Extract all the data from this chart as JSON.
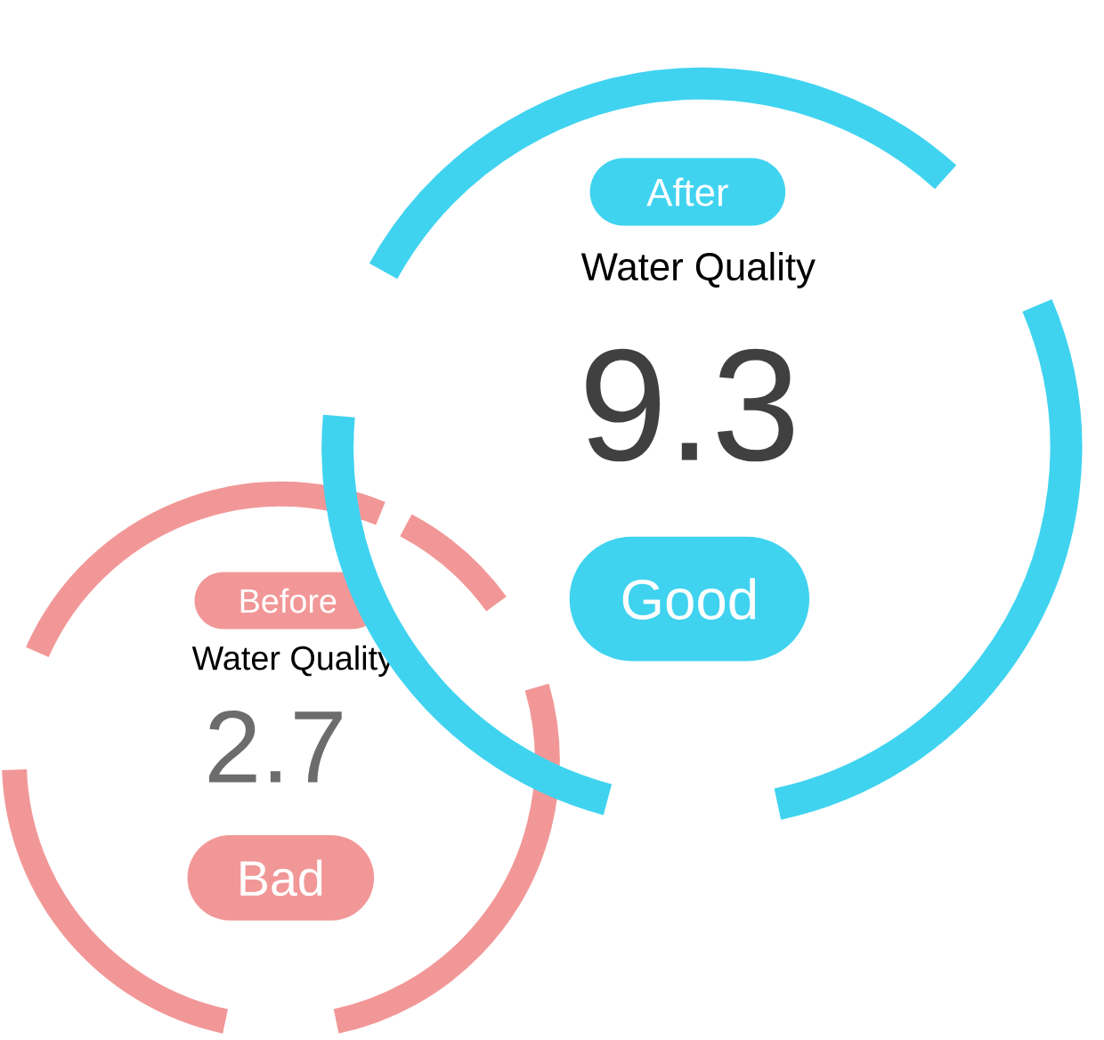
{
  "chart_data": [
    {
      "type": "other",
      "title": "Before",
      "subtitle": "Water Quality",
      "values": [
        2.7
      ],
      "data_labels": true,
      "annotations": [
        "Bad"
      ],
      "color": "#f29797"
    },
    {
      "type": "other",
      "title": "After",
      "subtitle": "Water Quality",
      "values": [
        9.3
      ],
      "data_labels": true,
      "annotations": [
        "Good"
      ],
      "color": "#3fd3f0"
    }
  ]
}
